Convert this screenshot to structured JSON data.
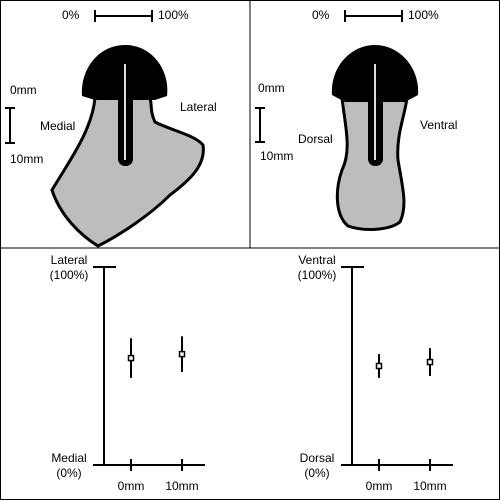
{
  "panels": [
    {
      "scale_bar": {
        "min": "0%",
        "max": "100%"
      },
      "depth": {
        "top": "0mm",
        "bottom": "10mm"
      },
      "left_label": "Medial",
      "right_label": "Lateral"
    },
    {
      "scale_bar": {
        "min": "0%",
        "max": "100%"
      },
      "depth": {
        "top": "0mm",
        "bottom": "10mm"
      },
      "left_label": "Dorsal",
      "right_label": "Ventral"
    }
  ],
  "chart_data": [
    {
      "type": "errorbar",
      "categories": [
        "0mm",
        "10mm"
      ],
      "series": [
        {
          "color": "#000000",
          "values": [
            54,
            56
          ],
          "errors": [
            10,
            9
          ]
        }
      ],
      "ylim": [
        0,
        100
      ],
      "yticks": [
        {
          "value": 0,
          "label": [
            "Medial",
            "(0%)"
          ]
        },
        {
          "value": 100,
          "label": [
            "Lateral",
            "(100%)"
          ]
        }
      ]
    },
    {
      "type": "errorbar",
      "categories": [
        "0mm",
        "10mm"
      ],
      "series": [
        {
          "color": "#000000",
          "values": [
            50,
            52
          ],
          "errors": [
            6,
            7
          ]
        }
      ],
      "ylim": [
        0,
        100
      ],
      "yticks": [
        {
          "value": 0,
          "label": [
            "Dorsal",
            "(0%)"
          ]
        },
        {
          "value": 100,
          "label": [
            "Ventral",
            "(100%)"
          ]
        }
      ]
    }
  ]
}
